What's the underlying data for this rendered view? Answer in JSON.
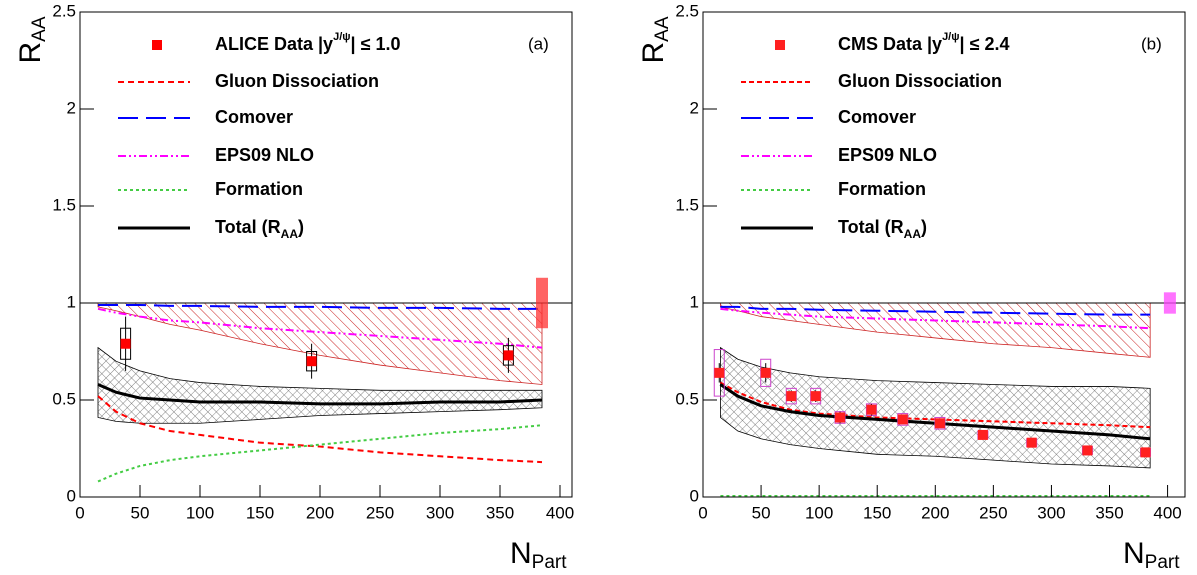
{
  "chart_data": [
    {
      "type": "line",
      "panel_label": "(a)",
      "ylabel": "R",
      "ylabel_sub": "AA",
      "xlabel": "N",
      "xlabel_sub": "Part",
      "xlim": [
        0,
        410
      ],
      "ylim": [
        0,
        2.5
      ],
      "xticks": [
        0,
        50,
        100,
        150,
        200,
        250,
        300,
        350,
        400
      ],
      "yticks": [
        0,
        0.5,
        1,
        1.5,
        2,
        2.5
      ],
      "reference": 1,
      "x": [
        15,
        30,
        50,
        75,
        100,
        150,
        200,
        250,
        300,
        350,
        385
      ],
      "data": {
        "name": "ALICE Data |y",
        "name_sup": "J/ψ",
        "name_tail": "| ≤ 1.0",
        "color": "#ff0000",
        "box_color": "#000000",
        "x": [
          38,
          193,
          357
        ],
        "values": [
          0.79,
          0.7,
          0.73
        ],
        "errors": [
          0.14,
          0.09,
          0.09
        ],
        "sys_errors": [
          0.08,
          0.05,
          0.05
        ]
      },
      "global": {
        "x": 385,
        "value": 1,
        "error": 0.13,
        "color": "#ff3030"
      },
      "series": [
        {
          "name": "Gluon Dissociation",
          "color": "#ff0000",
          "dash": "6,4",
          "values": [
            0.52,
            0.44,
            0.38,
            0.34,
            0.32,
            0.28,
            0.26,
            0.23,
            0.21,
            0.19,
            0.18
          ]
        },
        {
          "name": "Comover",
          "color": "#0000ff",
          "dash": "20,8",
          "values": [
            0.99,
            0.99,
            0.99,
            0.985,
            0.985,
            0.98,
            0.98,
            0.975,
            0.975,
            0.97,
            0.97
          ]
        },
        {
          "name": "EPS09 NLO",
          "color": "#ff00ff",
          "dash": "8,3,2,3,2,3",
          "values": [
            0.97,
            0.95,
            0.93,
            0.91,
            0.9,
            0.87,
            0.85,
            0.83,
            0.81,
            0.79,
            0.77
          ]
        },
        {
          "name": "Formation",
          "color": "#44cc44",
          "dash": "3,3",
          "values": [
            0.08,
            0.12,
            0.16,
            0.19,
            0.21,
            0.24,
            0.27,
            0.3,
            0.33,
            0.35,
            0.37
          ]
        },
        {
          "name": "Total (R",
          "name_sub": "AA",
          "name_tail": ")",
          "color": "#000000",
          "dash": "",
          "values": [
            0.58,
            0.54,
            0.51,
            0.5,
            0.49,
            0.49,
            0.48,
            0.48,
            0.49,
            0.49,
            0.5
          ]
        }
      ],
      "bands": [
        {
          "color": "#cc2222",
          "pattern": "hatch",
          "upper": [
            1,
            1,
            1,
            1,
            1,
            1,
            1,
            1,
            1,
            1,
            1
          ],
          "lower": [
            0.98,
            0.96,
            0.93,
            0.89,
            0.86,
            0.79,
            0.73,
            0.68,
            0.64,
            0.6,
            0.58
          ]
        },
        {
          "color": "#000000",
          "pattern": "cross",
          "upper": [
            0.77,
            0.7,
            0.65,
            0.61,
            0.59,
            0.57,
            0.56,
            0.55,
            0.55,
            0.55,
            0.55
          ],
          "lower": [
            0.41,
            0.39,
            0.38,
            0.38,
            0.38,
            0.4,
            0.42,
            0.43,
            0.44,
            0.45,
            0.46
          ]
        }
      ]
    },
    {
      "type": "line",
      "panel_label": "(b)",
      "ylabel": "R",
      "ylabel_sub": "AA",
      "xlabel": "N",
      "xlabel_sub": "Part",
      "xlim": [
        0,
        415
      ],
      "ylim": [
        0,
        2.5
      ],
      "xticks": [
        0,
        50,
        100,
        150,
        200,
        250,
        300,
        350,
        400
      ],
      "yticks": [
        0,
        0.5,
        1,
        1.5,
        2,
        2.5
      ],
      "reference": 1,
      "x": [
        15,
        30,
        50,
        75,
        100,
        150,
        200,
        250,
        300,
        350,
        385
      ],
      "data": {
        "name": "CMS Data |y",
        "name_sup": "J/ψ",
        "name_tail": "| ≤ 2.4",
        "color": "#ff2020",
        "box_color": "#cc44cc",
        "x": [
          14,
          54,
          76,
          97,
          118,
          145,
          172,
          204,
          241,
          283,
          331,
          381
        ],
        "values": [
          0.64,
          0.64,
          0.52,
          0.52,
          0.41,
          0.45,
          0.4,
          0.38,
          0.32,
          0.28,
          0.24,
          0.23
        ],
        "errors": [
          0.05,
          0.05,
          0.03,
          0.03,
          0.03,
          0.03,
          0.02,
          0.02,
          0.02,
          0.02,
          0.02,
          0.02
        ],
        "sys_errors": [
          0.12,
          0.07,
          0.04,
          0.04,
          0.03,
          0.03,
          0.03,
          0.03,
          0.02,
          0.02,
          0.02,
          0.02
        ]
      },
      "global": {
        "x": 402,
        "value": 1,
        "error": 0.055,
        "color": "#ff44ff"
      },
      "series": [
        {
          "name": "Gluon Dissociation",
          "color": "#ff0000",
          "dash": "5,3",
          "values": [
            0.59,
            0.54,
            0.49,
            0.45,
            0.43,
            0.41,
            0.4,
            0.39,
            0.38,
            0.37,
            0.36
          ]
        },
        {
          "name": "Comover",
          "color": "#0000ff",
          "dash": "20,8",
          "values": [
            0.98,
            0.98,
            0.97,
            0.97,
            0.965,
            0.96,
            0.955,
            0.95,
            0.945,
            0.94,
            0.94
          ]
        },
        {
          "name": "EPS09 NLO",
          "color": "#ff00ff",
          "dash": "8,3,2,3,2,3",
          "values": [
            0.97,
            0.96,
            0.95,
            0.94,
            0.93,
            0.92,
            0.91,
            0.9,
            0.89,
            0.88,
            0.87
          ]
        },
        {
          "name": "Formation",
          "color": "#44cc44",
          "dash": "3,3",
          "values": [
            0.005,
            0.005,
            0.005,
            0.005,
            0.005,
            0.005,
            0.005,
            0.005,
            0.005,
            0.005,
            0.005
          ]
        },
        {
          "name": "Total (R",
          "name_sub": "AA",
          "name_tail": ")",
          "color": "#000000",
          "dash": "",
          "values": [
            0.58,
            0.52,
            0.47,
            0.44,
            0.42,
            0.4,
            0.38,
            0.36,
            0.34,
            0.32,
            0.3
          ]
        }
      ],
      "bands": [
        {
          "color": "#cc2222",
          "pattern": "hatch",
          "upper": [
            1,
            1,
            1,
            1,
            1,
            1,
            1,
            1,
            1,
            1,
            1
          ],
          "lower": [
            0.98,
            0.96,
            0.93,
            0.91,
            0.89,
            0.85,
            0.82,
            0.79,
            0.77,
            0.74,
            0.72
          ]
        },
        {
          "color": "#000000",
          "pattern": "cross",
          "upper": [
            0.77,
            0.71,
            0.67,
            0.64,
            0.62,
            0.6,
            0.59,
            0.58,
            0.57,
            0.57,
            0.56
          ],
          "lower": [
            0.41,
            0.34,
            0.3,
            0.27,
            0.25,
            0.22,
            0.21,
            0.19,
            0.17,
            0.16,
            0.15
          ]
        }
      ]
    }
  ]
}
